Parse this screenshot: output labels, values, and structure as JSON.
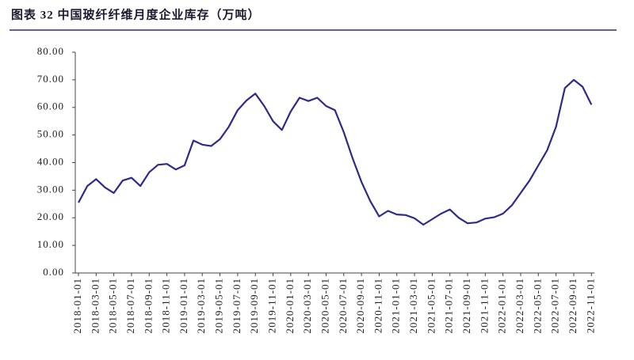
{
  "chart_data": {
    "type": "line",
    "title": "图表 32 中国玻纤纤维月度企业库存（万吨）",
    "categories": [
      "2018-01-01",
      null,
      "2018-03-01",
      null,
      "2018-05-01",
      null,
      "2018-07-01",
      null,
      "2018-09-01",
      null,
      "2018-11-01",
      null,
      "2019-01-01",
      null,
      "2019-03-01",
      null,
      "2019-05-01",
      null,
      "2019-07-01",
      null,
      "2019-09-01",
      null,
      "2019-11-01",
      null,
      "2020-01-01",
      null,
      "2020-03-01",
      null,
      "2020-05-01",
      null,
      "2020-07-01",
      null,
      "2020-09-01",
      null,
      "2020-11-01",
      null,
      "2021-01-01",
      null,
      "2021-03-01",
      null,
      "2021-05-01",
      null,
      "2021-07-01",
      null,
      "2021-09-01",
      null,
      "2021-11-01",
      null,
      "2022-01-01",
      null,
      "2022-03-01",
      null,
      "2022-05-01",
      null,
      "2022-07-01",
      null,
      "2022-09-01",
      null,
      "2022-11-01"
    ],
    "series": [
      {
        "name": "库存",
        "color": "#2e2a8a",
        "values": [
          25.5,
          31.5,
          34,
          31,
          29,
          33.5,
          34.5,
          31.5,
          36.5,
          39.2,
          39.5,
          37.5,
          39,
          48,
          46.5,
          46,
          48.5,
          53,
          59,
          62.5,
          65,
          60.5,
          55,
          51.8,
          58.5,
          63.5,
          62.3,
          63.5,
          60.5,
          59,
          51,
          41.5,
          33,
          26,
          20.5,
          22.5,
          21.2,
          21,
          19.8,
          17.5,
          19.5,
          21.5,
          23,
          20,
          18,
          18.3,
          19.7,
          20.2,
          21.5,
          24.5,
          29,
          33.5,
          39,
          44.5,
          53,
          67,
          70,
          67.5,
          61
        ]
      }
    ],
    "ylim": [
      0,
      80
    ],
    "yticks": [
      {
        "value": 0,
        "label": "0.00"
      },
      {
        "value": 10,
        "label": "10.00"
      },
      {
        "value": 20,
        "label": "20.00"
      },
      {
        "value": 30,
        "label": "30.00"
      },
      {
        "value": 40,
        "label": "40.00"
      },
      {
        "value": 50,
        "label": "50.00"
      },
      {
        "value": 60,
        "label": "60.00"
      },
      {
        "value": 70,
        "label": "70.00"
      },
      {
        "value": 80,
        "label": "80.00"
      }
    ]
  }
}
